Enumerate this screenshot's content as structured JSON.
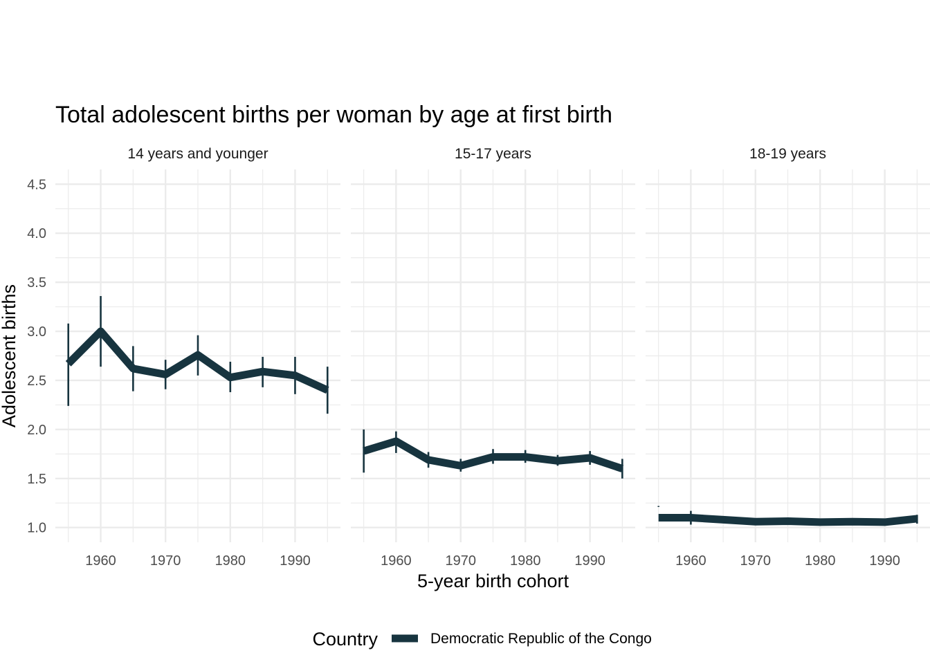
{
  "chart_data": {
    "type": "line",
    "title": "Total adolescent births per woman by age at first birth",
    "xlabel": "5-year birth cohort",
    "ylabel": "Adolescent births",
    "ylim": [
      0.85,
      4.65
    ],
    "y_ticks": [
      1.0,
      1.5,
      2.0,
      2.5,
      3.0,
      3.5,
      4.0,
      4.5
    ],
    "y_tick_labels": [
      "1.0",
      "1.5",
      "2.0",
      "2.5",
      "3.0",
      "3.5",
      "4.0",
      "4.5"
    ],
    "xlim": [
      1953,
      1997
    ],
    "x_ticks": [
      1960,
      1970,
      1980,
      1990
    ],
    "x_tick_labels": [
      "1960",
      "1970",
      "1980",
      "1990"
    ],
    "grid": true,
    "legend": {
      "title": "Country",
      "position": "bottom",
      "entries": [
        {
          "label": "Democratic Republic of the Congo",
          "color": "#17343f"
        }
      ]
    },
    "series_color": "#17343f",
    "x": [
      1955,
      1960,
      1965,
      1970,
      1975,
      1980,
      1985,
      1990,
      1995
    ],
    "facets": [
      {
        "label": "14 years and younger",
        "values": [
          2.67,
          3.0,
          2.62,
          2.56,
          2.76,
          2.53,
          2.59,
          2.55,
          2.4
        ],
        "lower": [
          2.24,
          2.64,
          2.39,
          2.41,
          2.55,
          2.38,
          2.43,
          2.36,
          2.16
        ],
        "upper": [
          3.08,
          3.36,
          2.85,
          2.71,
          2.96,
          2.69,
          2.74,
          2.74,
          2.64
        ]
      },
      {
        "label": "15-17 years",
        "values": [
          1.78,
          1.88,
          1.69,
          1.63,
          1.72,
          1.72,
          1.68,
          1.71,
          1.6
        ],
        "lower": [
          1.56,
          1.76,
          1.61,
          1.57,
          1.65,
          1.66,
          1.63,
          1.64,
          1.5
        ],
        "upper": [
          2.0,
          1.98,
          1.77,
          1.7,
          1.8,
          1.79,
          1.74,
          1.78,
          1.7
        ]
      },
      {
        "label": "18-19 years",
        "values": [
          1.1,
          1.1,
          1.08,
          1.06,
          1.065,
          1.055,
          1.06,
          1.055,
          1.09
        ],
        "lower": [
          1.21,
          1.03,
          1.07,
          1.05,
          1.055,
          1.045,
          1.05,
          1.045,
          1.04
        ],
        "upper": [
          1.22,
          1.17,
          1.09,
          1.07,
          1.075,
          1.065,
          1.07,
          1.065,
          1.13
        ]
      }
    ]
  }
}
